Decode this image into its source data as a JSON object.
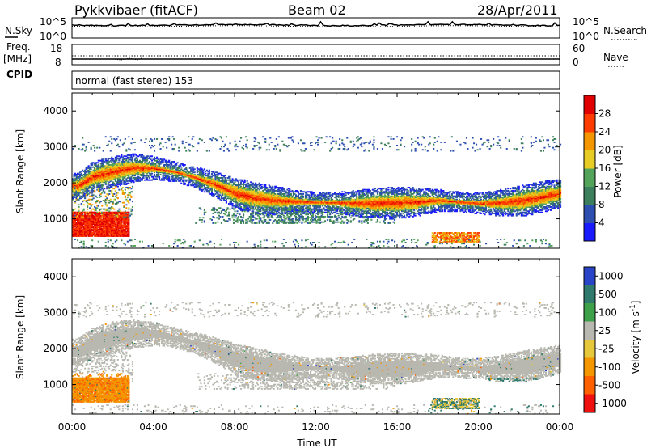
{
  "header": {
    "station": "Pykkvibaer (fitACF)",
    "beam": "Beam 02",
    "date": "28/Apr/2011"
  },
  "strip_panels": {
    "noise": {
      "left_label": "N.Sky",
      "left_ticks": [
        "10^5",
        "10^0"
      ],
      "right_ticks": [
        "10^5",
        "10^0"
      ],
      "right_label": "N.Search"
    },
    "freq": {
      "left_label_1": "Freq.",
      "left_label_2": "[MHz]",
      "left_ticks": [
        "18",
        "8"
      ],
      "right_ticks": [
        "60",
        "0"
      ],
      "right_label": "Nave"
    },
    "cpid": {
      "label": "CPID",
      "text": "normal (fast stereo) 153"
    }
  },
  "chart_data": [
    {
      "type": "heatmap",
      "title": "",
      "xlabel": "Time UT",
      "ylabel": "Slant Range [km]",
      "xlim": [
        0,
        24
      ],
      "ylim": [
        180,
        4500
      ],
      "x_tick_labels": [
        "00:00",
        "04:00",
        "08:00",
        "12:00",
        "16:00",
        "20:00",
        "00:00"
      ],
      "y_ticks": [
        1000,
        2000,
        3000,
        4000
      ],
      "colorbar": {
        "label": "Power [dB]",
        "ticks": [
          4,
          8,
          12,
          16,
          20,
          24,
          28
        ],
        "colors": [
          "#1a1aff",
          "#2c4fb0",
          "#3c7f5c",
          "#53a35b",
          "#e6cc24",
          "#f49600",
          "#ff3c00",
          "#e00000"
        ]
      },
      "description_series": [
        {
          "name": "main_echo_band_center_km",
          "x": [
            0.3,
            1,
            2,
            3,
            4,
            5,
            6,
            7,
            8,
            9,
            10,
            11,
            12,
            13,
            14,
            15,
            16,
            17,
            18,
            19,
            20,
            21,
            22,
            23,
            24
          ],
          "values": [
            1900,
            2150,
            2300,
            2400,
            2400,
            2300,
            2150,
            1950,
            1700,
            1560,
            1500,
            1470,
            1450,
            1440,
            1420,
            1420,
            1430,
            1460,
            1500,
            1460,
            1420,
            1430,
            1480,
            1580,
            1700
          ]
        }
      ]
    },
    {
      "type": "heatmap",
      "title": "",
      "xlabel": "Time UT",
      "ylabel": "Slant Range [km]",
      "xlim": [
        0,
        24
      ],
      "ylim": [
        180,
        4500
      ],
      "x_tick_labels": [
        "00:00",
        "04:00",
        "08:00",
        "12:00",
        "16:00",
        "20:00",
        "00:00"
      ],
      "y_ticks": [
        1000,
        2000,
        3000,
        4000
      ],
      "colorbar": {
        "label_main": "Velocity  [m s",
        "label_sup": "-1",
        "label_end": "]",
        "ticks": [
          "1000",
          "500",
          "100",
          "25",
          "-25",
          "-100",
          "-500",
          "-1000"
        ],
        "colors": [
          "#2a44c8",
          "#2f7a6c",
          "#3fa04a",
          "#b8b8b0",
          "#e6c83c",
          "#f49600",
          "#ff6000",
          "#f01010"
        ]
      }
    }
  ]
}
